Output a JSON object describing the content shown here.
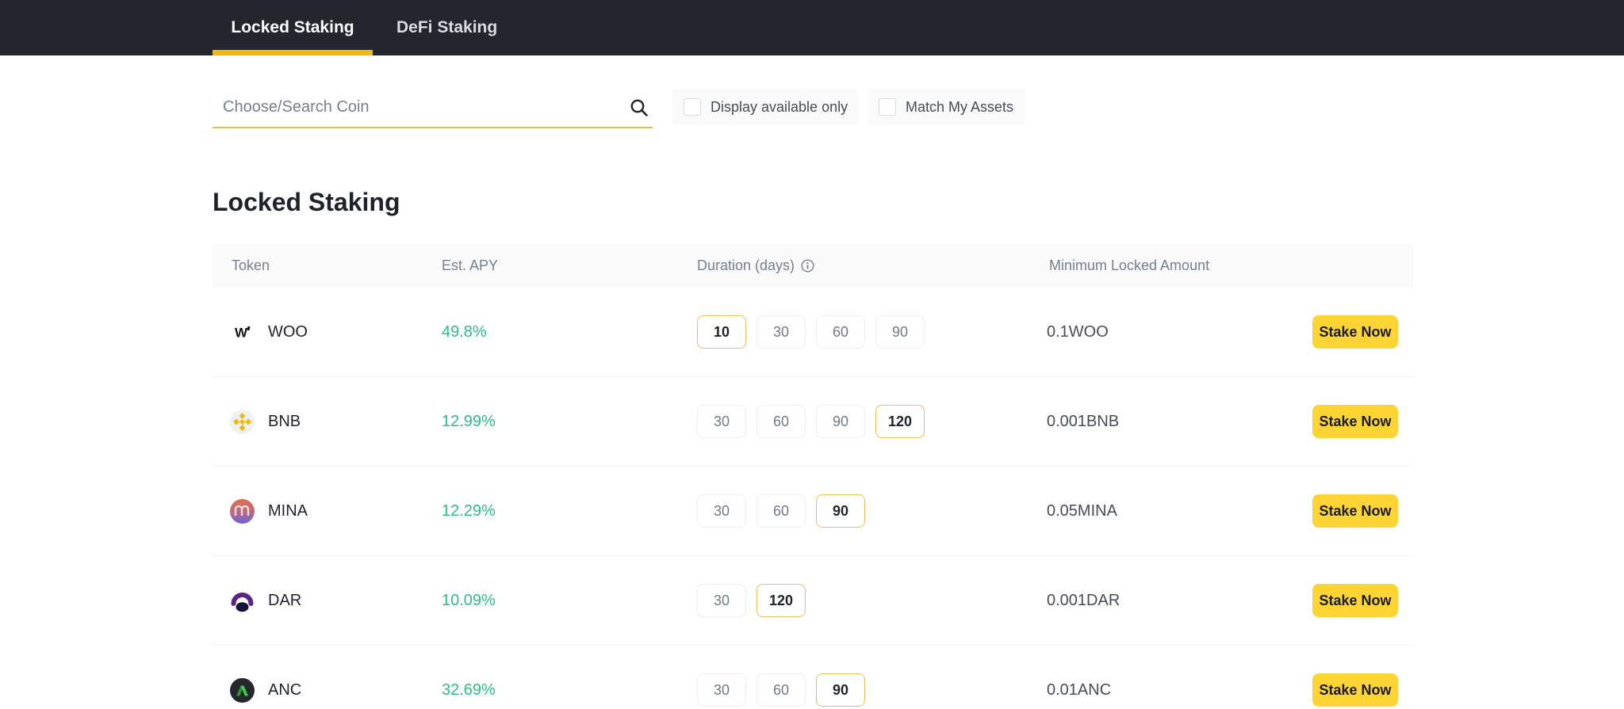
{
  "tabs": {
    "items": [
      {
        "label": "Locked Staking",
        "active": true
      },
      {
        "label": "DeFi Staking",
        "active": false
      }
    ]
  },
  "filters": {
    "search_placeholder": "Choose/Search Coin",
    "search_icon": "search-icon",
    "checkboxes": [
      {
        "label": "Display available only",
        "checked": false
      },
      {
        "label": "Match My Assets",
        "checked": false
      }
    ]
  },
  "page": {
    "title": "Locked Staking"
  },
  "table": {
    "columns": [
      "Token",
      "Est. APY",
      "Duration (days)",
      "Minimum Locked Amount"
    ],
    "duration_info_icon": "info-icon",
    "rows": [
      {
        "token": "WOO",
        "icon": "woo-token-icon",
        "apy": "49.8%",
        "durations": [
          "10",
          "30",
          "60",
          "90"
        ],
        "selected_duration": "10",
        "min_locked": "0.1WOO",
        "action": "Stake Now"
      },
      {
        "token": "BNB",
        "icon": "bnb-token-icon",
        "apy": "12.99%",
        "durations": [
          "30",
          "60",
          "90",
          "120"
        ],
        "selected_duration": "120",
        "min_locked": "0.001BNB",
        "action": "Stake Now"
      },
      {
        "token": "MINA",
        "icon": "mina-token-icon",
        "apy": "12.29%",
        "durations": [
          "30",
          "60",
          "90"
        ],
        "selected_duration": "90",
        "min_locked": "0.05MINA",
        "action": "Stake Now"
      },
      {
        "token": "DAR",
        "icon": "dar-token-icon",
        "apy": "10.09%",
        "durations": [
          "30",
          "120"
        ],
        "selected_duration": "120",
        "min_locked": "0.001DAR",
        "action": "Stake Now"
      },
      {
        "token": "ANC",
        "icon": "anc-token-icon",
        "apy": "32.69%",
        "durations": [
          "30",
          "60",
          "90"
        ],
        "selected_duration": "90",
        "min_locked": "0.01ANC",
        "action": "Stake Now"
      }
    ]
  },
  "colors": {
    "top_bar": "#23262c",
    "tab_underline": "#f0b90b",
    "accent_yellow": "#fcd535",
    "apy_green": "#2ebd85",
    "selected_duration_border": "#e9c156",
    "header_bg": "#fafafa",
    "text_dark": "#1e2329",
    "text_gray": "#76808f"
  }
}
